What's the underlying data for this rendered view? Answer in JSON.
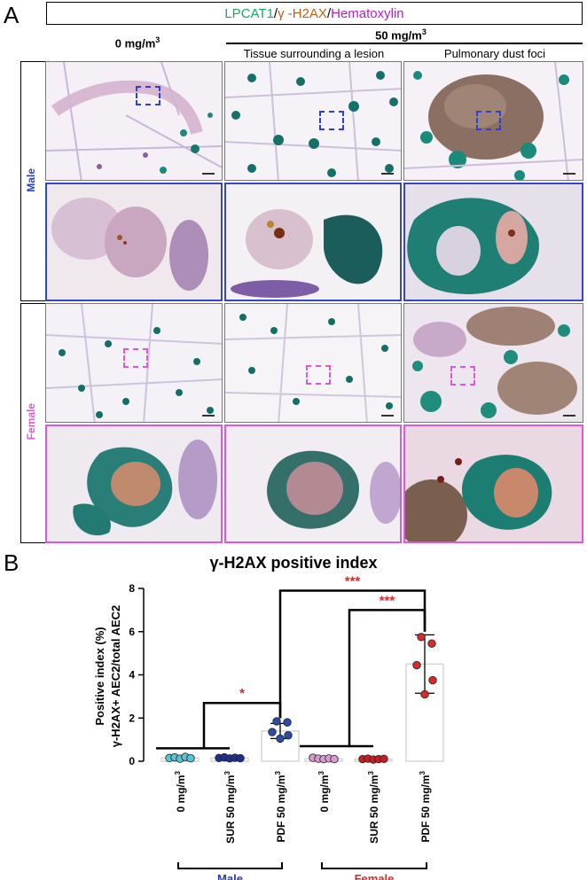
{
  "panel_a": {
    "letter": "A",
    "stain_legend": {
      "green": "LPCAT1",
      "sep1": "/",
      "brown": "γ -H2AX",
      "sep2": "/",
      "purple": "Hematoxylin"
    },
    "header_dose_0": "0 mg/m",
    "header_dose_50": "50 mg/m",
    "header_sup": "3",
    "col_tissue": "Tissue surrounding a lesion",
    "col_pdf": "Pulmonary dust foci",
    "row_male": "Male",
    "row_female": "Female",
    "colors": {
      "male": "#2b3fdd",
      "female": "#e055de"
    }
  },
  "panel_b": {
    "letter": "B"
  },
  "chart_data": {
    "type": "scatter",
    "title": "γ-H2AX positive index",
    "ylabel_line1": "Positive index (%)",
    "ylabel_line2": "γ-H2AX+ AEC2/total AEC2",
    "ylim": [
      0,
      8
    ],
    "yticks": [
      "0",
      "2",
      "4",
      "6",
      "8"
    ],
    "categories": [
      "0 mg/m3",
      "SUR 50 mg/m3",
      "PDF 50 mg/m3",
      "0 mg/m3",
      "SUR 50 mg/m3",
      "PDF 50 mg/m3"
    ],
    "category_labels": [
      {
        "main": "0 mg/m",
        "sup": "3"
      },
      {
        "main": "SUR 50 mg/m",
        "sup": "3"
      },
      {
        "main": "PDF 50 mg/m",
        "sup": "3"
      },
      {
        "main": "0 mg/m",
        "sup": "3"
      },
      {
        "main": "SUR 50 mg/m",
        "sup": "3"
      },
      {
        "main": "PDF 50 mg/m",
        "sup": "3"
      }
    ],
    "groups": [
      {
        "name": "Male",
        "color": "#2b3fa0",
        "categories": [
          0,
          1,
          2
        ]
      },
      {
        "name": "Female",
        "color": "#d22b2b",
        "categories": [
          3,
          4,
          5
        ]
      }
    ],
    "means": [
      0.15,
      0.15,
      1.4,
      0.12,
      0.1,
      4.5
    ],
    "sd": [
      0.05,
      0.05,
      0.35,
      0.05,
      0.05,
      1.35
    ],
    "points": [
      [
        0.15,
        0.18,
        0.12,
        0.2,
        0.14
      ],
      [
        0.15,
        0.18,
        0.13,
        0.16,
        0.14
      ],
      [
        1.85,
        1.8,
        1.35,
        1.2,
        1.05
      ],
      [
        0.16,
        0.12,
        0.1,
        0.13,
        0.1
      ],
      [
        0.1,
        0.12,
        0.08,
        0.1,
        0.11
      ],
      [
        5.75,
        5.45,
        4.45,
        3.75,
        3.1
      ]
    ],
    "point_colors": [
      "#5bc3d6",
      "#1f2f8c",
      "#2a4ba8",
      "#d99ad2",
      "#c81b25",
      "#d82a2a"
    ],
    "significance": [
      {
        "from": 0,
        "to": 2,
        "label": "*",
        "color": "#d22b2b"
      },
      {
        "from": 2,
        "to": 5,
        "label": "***",
        "color": "#d22b2b"
      },
      {
        "from": 3,
        "to": 5,
        "label": "***",
        "color": "#d22b2b"
      }
    ],
    "group_labels": [
      "Male",
      "Female"
    ],
    "group_label_colors": [
      "#2b3fa0",
      "#d22b2b"
    ]
  }
}
